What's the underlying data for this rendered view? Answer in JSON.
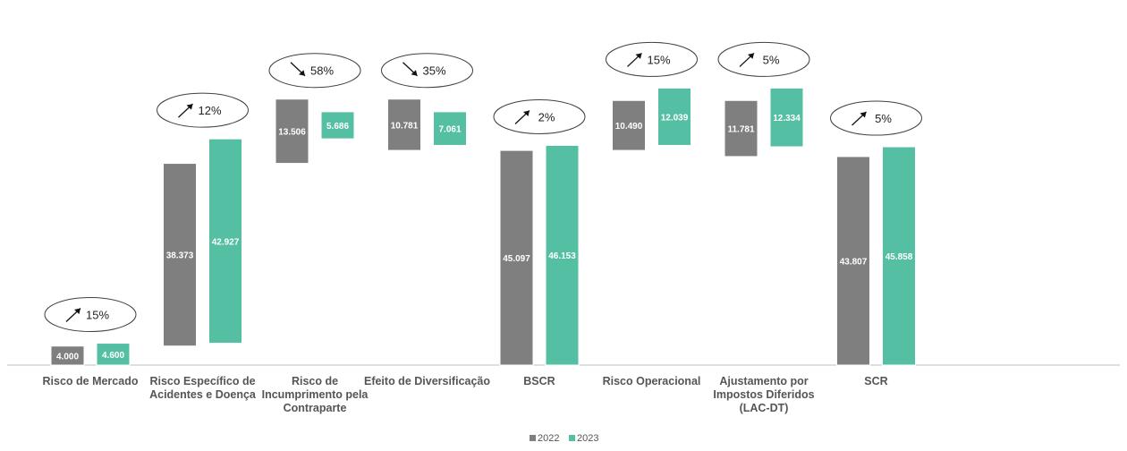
{
  "chart_data": {
    "type": "bar",
    "subtype": "waterfall",
    "title": "",
    "xlabel": "",
    "ylabel": "",
    "legend_position": "bottom-center",
    "grid": false,
    "colors": {
      "2022": "#7f7f7f",
      "2023": "#55bfa3"
    },
    "series": [
      {
        "name": "2022",
        "values": [
          "4.000",
          "38.373",
          "13.506",
          "10.781",
          "45.097",
          "10.490",
          "11.781",
          "43.807"
        ]
      },
      {
        "name": "2023",
        "values": [
          "4.600",
          "42.927",
          "5.686",
          "7.061",
          "46.153",
          "12.039",
          "12.334",
          "45.858"
        ]
      }
    ],
    "categories": [
      {
        "lines": [
          "Risco de Mercado"
        ],
        "change": "15%",
        "direction": "up"
      },
      {
        "lines": [
          "Risco Específico de",
          "Acidentes e Doença"
        ],
        "change": "12%",
        "direction": "up"
      },
      {
        "lines": [
          "Risco de",
          "Incumprimento pela",
          "Contraparte"
        ],
        "change": "58%",
        "direction": "down"
      },
      {
        "lines": [
          "Efeito de Diversificação"
        ],
        "change": "35%",
        "direction": "down"
      },
      {
        "lines": [
          "BSCR"
        ],
        "change": "2%",
        "direction": "up"
      },
      {
        "lines": [
          "Risco Operacional"
        ],
        "change": "15%",
        "direction": "up"
      },
      {
        "lines": [
          "Ajustamento por",
          "Impostos Diferidos",
          "(LAC-DT)"
        ],
        "change": "5%",
        "direction": "up"
      },
      {
        "lines": [
          "SCR"
        ],
        "change": "5%",
        "direction": "up"
      }
    ]
  }
}
